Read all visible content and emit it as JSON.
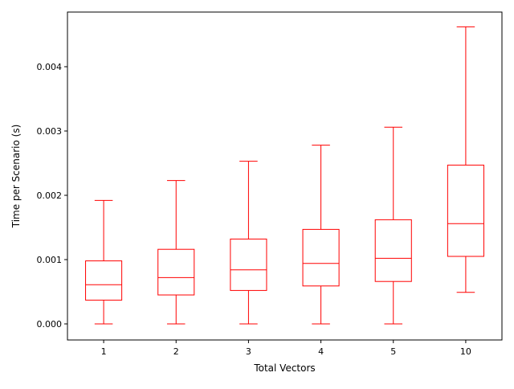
{
  "chart_data": {
    "type": "box",
    "title": "",
    "xlabel": "Total Vectors",
    "ylabel": "Time per Scenario (s)",
    "categories": [
      "1",
      "2",
      "3",
      "4",
      "5",
      "10"
    ],
    "ylim": [
      -0.00025,
      0.00485
    ],
    "yticks": [
      0.0,
      0.001,
      0.002,
      0.003,
      0.004
    ],
    "ytick_labels": [
      "0.000",
      "0.001",
      "0.002",
      "0.003",
      "0.004"
    ],
    "grid": false,
    "box_color": "#ff0000",
    "boxes": [
      {
        "category": "1",
        "whisker_low": 0.0,
        "q1": 0.00037,
        "median": 0.00061,
        "q3": 0.00098,
        "whisker_high": 0.00192
      },
      {
        "category": "2",
        "whisker_low": 0.0,
        "q1": 0.00045,
        "median": 0.00072,
        "q3": 0.00116,
        "whisker_high": 0.00223
      },
      {
        "category": "3",
        "whisker_low": 0.0,
        "q1": 0.00052,
        "median": 0.00084,
        "q3": 0.00132,
        "whisker_high": 0.00253
      },
      {
        "category": "4",
        "whisker_low": 0.0,
        "q1": 0.00059,
        "median": 0.00094,
        "q3": 0.00147,
        "whisker_high": 0.00278
      },
      {
        "category": "5",
        "whisker_low": 0.0,
        "q1": 0.00066,
        "median": 0.00102,
        "q3": 0.00162,
        "whisker_high": 0.00306
      },
      {
        "category": "10",
        "whisker_low": 0.00049,
        "q1": 0.00105,
        "median": 0.00156,
        "q3": 0.00247,
        "whisker_high": 0.00462
      }
    ]
  }
}
